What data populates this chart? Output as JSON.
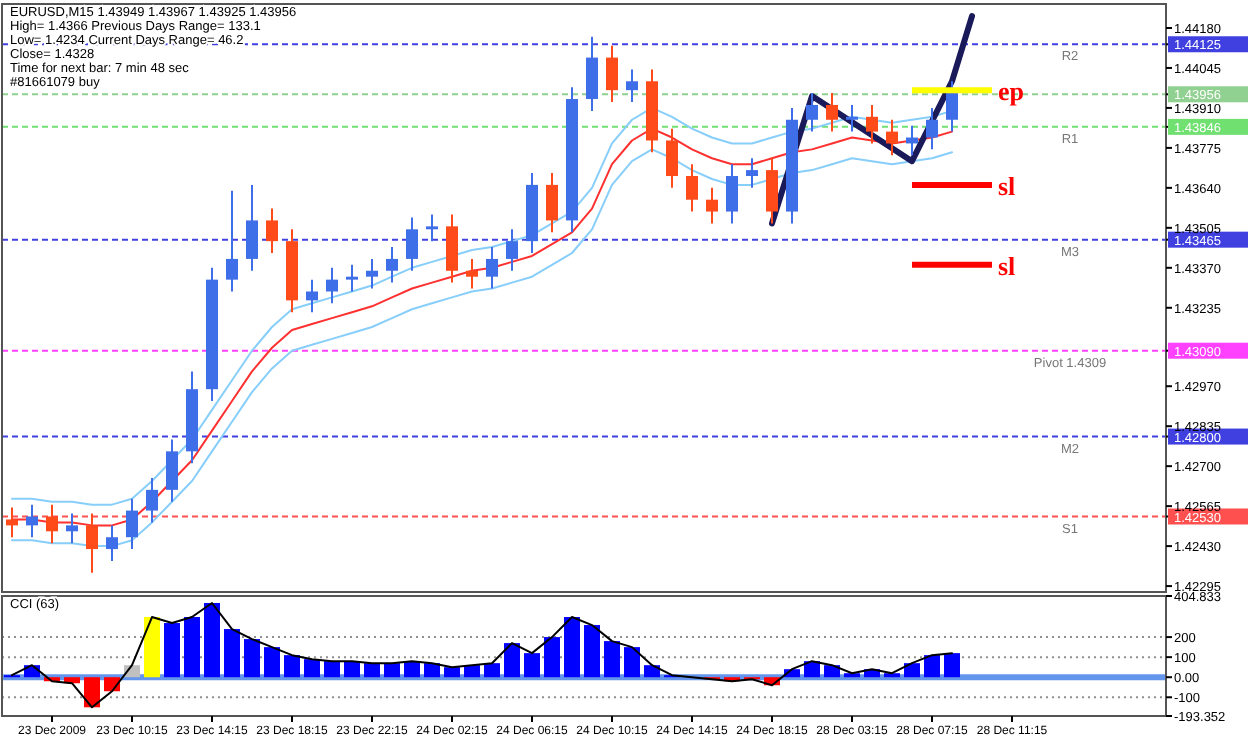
{
  "chart_data": [
    {
      "type": "candlestick",
      "title": "EURUSD,M15  1.43949 1.43967 1.43925 1.43956",
      "annotations": [
        "High= 1.4366    Previous Days Range= 133.1",
        "Low= 1.4234    Current Days Range= 46.2",
        "Close= 1.4328",
        "Time for next bar: 7 min 48 sec",
        "#81661079 buy"
      ],
      "categories": [
        null,
        null,
        null,
        null,
        null,
        null,
        null,
        null,
        null,
        null,
        null,
        null,
        null,
        null,
        null,
        null,
        null,
        null,
        null,
        null,
        null,
        null,
        null,
        null,
        null,
        null,
        null,
        null,
        null,
        null,
        null,
        null,
        null,
        null,
        null,
        null,
        null,
        null,
        null,
        null,
        null,
        null,
        null,
        null,
        null,
        null,
        null,
        null,
        null,
        null,
        null
      ],
      "ohlc": [
        [
          1.4252,
          1.4256,
          1.4246,
          1.425
        ],
        [
          1.425,
          1.4257,
          1.4246,
          1.4253
        ],
        [
          1.4253,
          1.4257,
          1.4244,
          1.4248
        ],
        [
          1.4248,
          1.4254,
          1.4244,
          1.425
        ],
        [
          1.425,
          1.4254,
          1.4234,
          1.4242
        ],
        [
          1.4242,
          1.425,
          1.4238,
          1.4246
        ],
        [
          1.4246,
          1.4259,
          1.4242,
          1.4255
        ],
        [
          1.4255,
          1.4266,
          1.4251,
          1.4262
        ],
        [
          1.4262,
          1.4279,
          1.4258,
          1.4275
        ],
        [
          1.4275,
          1.4302,
          1.4271,
          1.4296
        ],
        [
          1.4296,
          1.4337,
          1.4292,
          1.4333
        ],
        [
          1.4333,
          1.4363,
          1.4329,
          1.434
        ],
        [
          1.434,
          1.4365,
          1.4336,
          1.4353
        ],
        [
          1.4353,
          1.4357,
          1.4342,
          1.4346
        ],
        [
          1.4346,
          1.435,
          1.4322,
          1.4326
        ],
        [
          1.4326,
          1.4333,
          1.4322,
          1.4329
        ],
        [
          1.4329,
          1.4337,
          1.4325,
          1.4333
        ],
        [
          1.4333,
          1.4338,
          1.4329,
          1.4334
        ],
        [
          1.4334,
          1.434,
          1.433,
          1.4336
        ],
        [
          1.4336,
          1.4344,
          1.4332,
          1.434
        ],
        [
          1.434,
          1.4354,
          1.4336,
          1.435
        ],
        [
          1.435,
          1.4355,
          1.4346,
          1.4351
        ],
        [
          1.4351,
          1.4355,
          1.4332,
          1.4336
        ],
        [
          1.4336,
          1.434,
          1.433,
          1.4334
        ],
        [
          1.4334,
          1.4344,
          1.433,
          1.434
        ],
        [
          1.434,
          1.435,
          1.4336,
          1.4346
        ],
        [
          1.4346,
          1.4369,
          1.4342,
          1.4365
        ],
        [
          1.4365,
          1.4369,
          1.4349,
          1.4353
        ],
        [
          1.4353,
          1.4398,
          1.4349,
          1.4394
        ],
        [
          1.4394,
          1.4415,
          1.439,
          1.4408
        ],
        [
          1.4408,
          1.4412,
          1.4393,
          1.4397
        ],
        [
          1.4397,
          1.4404,
          1.4393,
          1.44
        ],
        [
          1.44,
          1.4404,
          1.4376,
          1.438
        ],
        [
          1.438,
          1.4384,
          1.4364,
          1.4368
        ],
        [
          1.4368,
          1.4372,
          1.4356,
          1.436
        ],
        [
          1.436,
          1.4364,
          1.4352,
          1.4356
        ],
        [
          1.4356,
          1.4372,
          1.4352,
          1.4368
        ],
        [
          1.4368,
          1.4374,
          1.4364,
          1.437
        ],
        [
          1.437,
          1.4374,
          1.4352,
          1.4356
        ],
        [
          1.4356,
          1.4391,
          1.4352,
          1.4387
        ],
        [
          1.4387,
          1.4396,
          1.4383,
          1.4392
        ],
        [
          1.4392,
          1.4396,
          1.4383,
          1.4387
        ],
        [
          1.4387,
          1.4392,
          1.4383,
          1.4388
        ],
        [
          1.4388,
          1.4392,
          1.4379,
          1.4383
        ],
        [
          1.4383,
          1.4387,
          1.4375,
          1.4379
        ],
        [
          1.4379,
          1.4385,
          1.4375,
          1.4381
        ],
        [
          1.4381,
          1.4391,
          1.4377,
          1.4387
        ],
        [
          1.4387,
          1.44,
          1.4383,
          1.4396
        ],
        null,
        null,
        null
      ],
      "series": [
        {
          "type": "line",
          "color": "#87cefa",
          "values": [
            1.4259,
            1.4259,
            1.4258,
            1.4258,
            1.4257,
            1.4257,
            1.4259,
            1.4265,
            1.4272,
            1.4279,
            1.4289,
            1.4299,
            1.4309,
            1.4317,
            1.4323,
            1.4325,
            1.4327,
            1.4329,
            1.4331,
            1.4334,
            1.4337,
            1.4339,
            1.4341,
            1.4343,
            1.4344,
            1.4346,
            1.4348,
            1.4352,
            1.4356,
            1.4364,
            1.4379,
            1.4387,
            1.4391,
            1.4388,
            1.4384,
            1.4381,
            1.4379,
            1.4379,
            1.4381,
            1.4383,
            1.4384,
            1.4386,
            1.4388,
            1.4387,
            1.4386,
            1.4387,
            1.4388,
            1.439,
            null,
            null,
            null
          ]
        },
        {
          "type": "line",
          "color": "#ff3030",
          "values": [
            1.4252,
            1.4252,
            1.4251,
            1.4251,
            1.425,
            1.425,
            1.4252,
            1.4258,
            1.4265,
            1.4272,
            1.4282,
            1.4292,
            1.4302,
            1.431,
            1.4316,
            1.4318,
            1.432,
            1.4322,
            1.4324,
            1.4327,
            1.433,
            1.4332,
            1.4334,
            1.4336,
            1.4337,
            1.4339,
            1.4341,
            1.4345,
            1.4349,
            1.4357,
            1.4372,
            1.438,
            1.4384,
            1.4381,
            1.4377,
            1.4374,
            1.4372,
            1.4372,
            1.4374,
            1.4376,
            1.4377,
            1.4379,
            1.4381,
            1.438,
            1.4379,
            1.438,
            1.4381,
            1.4383,
            null,
            null,
            null
          ]
        },
        {
          "type": "line",
          "color": "#87cefa",
          "values": [
            1.4245,
            1.4245,
            1.4244,
            1.4244,
            1.4243,
            1.4243,
            1.4245,
            1.4251,
            1.4258,
            1.4265,
            1.4275,
            1.4285,
            1.4295,
            1.4303,
            1.4309,
            1.4311,
            1.4313,
            1.4315,
            1.4317,
            1.432,
            1.4323,
            1.4325,
            1.4327,
            1.4329,
            1.433,
            1.4332,
            1.4334,
            1.4338,
            1.4342,
            1.435,
            1.4365,
            1.4373,
            1.4377,
            1.4374,
            1.437,
            1.4367,
            1.4365,
            1.4365,
            1.4367,
            1.4369,
            1.437,
            1.4372,
            1.4374,
            1.4373,
            1.4372,
            1.4373,
            1.4374,
            1.4376,
            null,
            null,
            null
          ]
        },
        {
          "type": "line",
          "color": "#1a1a5a",
          "values": [
            null,
            null,
            null,
            null,
            null,
            null,
            null,
            null,
            null,
            null,
            null,
            null,
            null,
            null,
            null,
            null,
            null,
            null,
            null,
            null,
            null,
            null,
            null,
            null,
            null,
            null,
            null,
            null,
            null,
            null,
            null,
            null,
            null,
            null,
            null,
            null,
            null,
            null,
            1.4352,
            null,
            1.4395,
            null,
            null,
            null,
            null,
            1.4373,
            null,
            1.44,
            1.4422,
            null,
            null
          ]
        }
      ],
      "ref_lines": [
        {
          "axis": "y",
          "value": 1.44125,
          "label": "R2",
          "color": "#4040e0",
          "line_style": "dashed"
        },
        {
          "axis": "y",
          "value": 1.43956,
          "label": null,
          "color": "#90d090",
          "line_style": "dashed"
        },
        {
          "axis": "y",
          "value": 1.43846,
          "label": "R1",
          "color": "#70e070",
          "line_style": "dashed"
        },
        {
          "axis": "y",
          "value": 1.43465,
          "label": "M3",
          "color": "#4040e0",
          "line_style": "dashed"
        },
        {
          "axis": "y",
          "value": 1.4309,
          "label": "Pivot 1.4309",
          "color": "#ff40ff",
          "line_style": "dashed"
        },
        {
          "axis": "y",
          "value": 1.428,
          "label": "M2",
          "color": "#4040e0",
          "line_style": "dashed"
        },
        {
          "axis": "y",
          "value": 1.4253,
          "label": "S1",
          "color": "#ff5050",
          "line_style": "dashed"
        },
        {
          "axis": "y",
          "value": 1.4397,
          "label": "ep",
          "color": "#ffff00",
          "line_style": "solid"
        },
        {
          "axis": "y",
          "value": 1.4365,
          "label": "sl",
          "color": "#ff0000",
          "line_style": "solid"
        },
        {
          "axis": "y",
          "value": 1.4338,
          "label": "sl",
          "color": "#ff0000",
          "line_style": "solid"
        }
      ],
      "ylim": [
        1.42275,
        1.44261
      ],
      "yticks": [
        1.42295,
        {
          "value": 1.4243,
          "label": "1.42430"
        },
        {
          "value": 1.4253,
          "label": "1.42530"
        },
        1.42565,
        {
          "value": 1.427,
          "label": "1.42700"
        },
        {
          "value": 1.428,
          "label": "1.42800"
        },
        1.42835,
        {
          "value": 1.4297,
          "label": "1.42970"
        },
        {
          "value": 1.4309,
          "label": "1.43090"
        },
        1.43235,
        {
          "value": 1.4337,
          "label": "1.43370"
        },
        1.43465,
        1.43505,
        {
          "value": 1.4364,
          "label": "1.43640"
        },
        1.43775,
        1.43846,
        {
          "value": 1.4391,
          "label": "1.43910"
        },
        1.43956,
        1.44045,
        1.44125,
        {
          "value": 1.4418,
          "label": "1.44180"
        }
      ],
      "tick_labels": "y",
      "grid": false
    },
    {
      "type": "bar",
      "title": "CCI (63)",
      "categories": [
        null,
        null,
        "23 Dec 2009",
        null,
        null,
        null,
        "23 Dec 10:15",
        null,
        null,
        null,
        "23 Dec 14:15",
        null,
        null,
        null,
        "23 Dec 18:15",
        null,
        null,
        null,
        "23 Dec 22:15",
        null,
        null,
        null,
        "24 Dec 02:15",
        null,
        null,
        null,
        "24 Dec 06:15",
        null,
        null,
        null,
        "24 Dec 10:15",
        null,
        null,
        null,
        "24 Dec 14:15",
        null,
        null,
        null,
        "24 Dec 18:15",
        null,
        null,
        null,
        "28 Dec 03:15",
        null,
        null,
        null,
        "28 Dec 07:15",
        null,
        null,
        null,
        "28 Dec 11:15"
      ],
      "series": [
        {
          "type": "bar",
          "values": [
            10,
            60,
            -20,
            -30,
            -150,
            -70,
            60,
            300,
            270,
            300,
            370,
            240,
            190,
            150,
            110,
            90,
            80,
            80,
            70,
            70,
            80,
            70,
            50,
            60,
            70,
            170,
            120,
            200,
            300,
            260,
            180,
            150,
            60,
            10,
            0,
            -10,
            -20,
            -10,
            -40,
            40,
            80,
            60,
            20,
            40,
            20,
            70,
            110,
            120,
            null,
            null,
            null
          ],
          "colors": [
            "#0000ff",
            "#0000ff",
            "#ff0000",
            "#ff0000",
            "#ff0000",
            "#ff0000",
            "#c0c0c0",
            "#ffff00",
            "#0000ff",
            "#0000ff",
            "#0000ff",
            "#0000ff",
            "#0000ff",
            "#0000ff",
            "#0000ff",
            "#0000ff",
            "#0000ff",
            "#0000ff",
            "#0000ff",
            "#0000ff",
            "#0000ff",
            "#0000ff",
            "#0000ff",
            "#0000ff",
            "#0000ff",
            "#0000ff",
            "#0000ff",
            "#0000ff",
            "#0000ff",
            "#0000ff",
            "#0000ff",
            "#0000ff",
            "#0000ff",
            "#0000ff",
            "#0000ff",
            "#ff0000",
            "#ff0000",
            "#ff0000",
            "#ff0000",
            "#0000ff",
            "#0000ff",
            "#0000ff",
            "#0000ff",
            "#0000ff",
            "#0000ff",
            "#0000ff",
            "#0000ff",
            "#0000ff",
            null,
            null,
            null
          ]
        },
        {
          "type": "line",
          "color": "#000000",
          "values": [
            10,
            60,
            -20,
            -30,
            -150,
            -70,
            60,
            300,
            270,
            300,
            370,
            240,
            190,
            150,
            110,
            90,
            80,
            80,
            70,
            70,
            80,
            70,
            50,
            60,
            70,
            170,
            120,
            200,
            300,
            260,
            180,
            150,
            60,
            10,
            0,
            -10,
            -20,
            -10,
            -40,
            40,
            80,
            60,
            20,
            40,
            20,
            70,
            110,
            120,
            null,
            null,
            null
          ]
        }
      ],
      "ref_lines": [
        {
          "axis": "y",
          "value": 200,
          "label": null,
          "color": "#909090",
          "line_style": "dotted"
        },
        {
          "axis": "y",
          "value": 100,
          "label": null,
          "color": "#909090",
          "line_style": "dotted"
        },
        {
          "axis": "y",
          "value": -100,
          "label": null,
          "color": "#909090",
          "line_style": "dotted"
        },
        {
          "axis": "y",
          "value": 0,
          "label": null,
          "color": "#6495ed",
          "line_style": "solid"
        }
      ],
      "ylim": [
        -193.352,
        404.833
      ],
      "yticks": [
        -193.352,
        -100,
        {
          "value": 0,
          "label": "0.00"
        },
        100,
        200,
        404.833
      ],
      "grid": false
    }
  ]
}
